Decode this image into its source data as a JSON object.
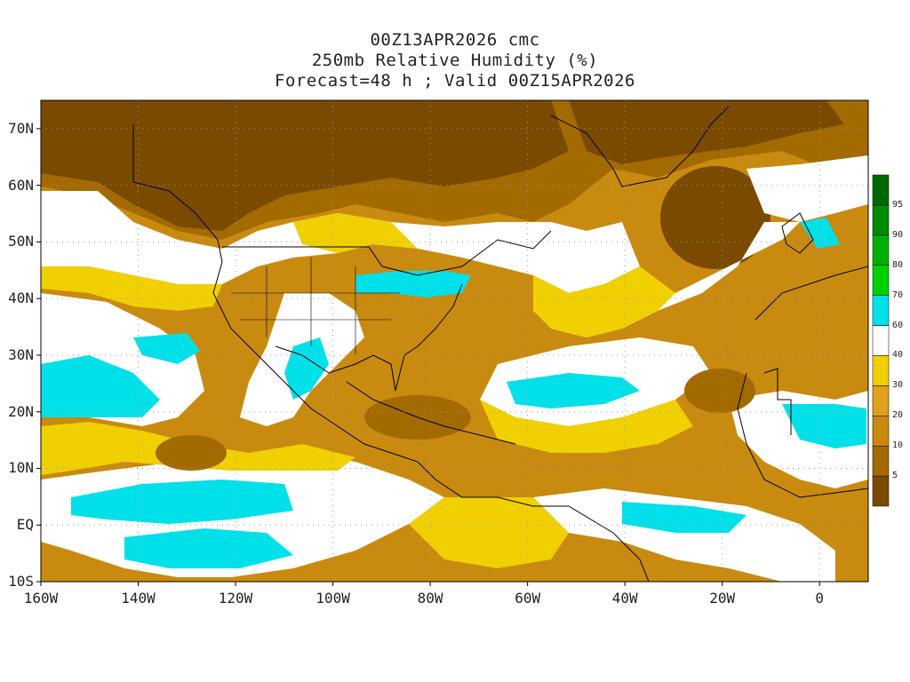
{
  "title": {
    "line1": "00Z13APR2026 cmc",
    "line2": "250mb Relative Humidity (%)",
    "line3": "Forecast=48 h ; Valid 00Z15APR2026"
  },
  "lat_labels": [
    "70N",
    "60N",
    "50N",
    "40N",
    "30N",
    "20N",
    "10N",
    "EQ",
    "10S"
  ],
  "lat_values": [
    70,
    60,
    50,
    40,
    30,
    20,
    10,
    0,
    -10
  ],
  "lon_labels": [
    "160W",
    "140W",
    "120W",
    "100W",
    "80W",
    "60W",
    "40W",
    "20W",
    "0"
  ],
  "lon_values": [
    -160,
    -140,
    -120,
    -100,
    -80,
    -60,
    -40,
    -20,
    0
  ],
  "colorbar": {
    "labels": [
      "5",
      "10",
      "20",
      "30",
      "40",
      "60",
      "70",
      "80",
      "90",
      "95"
    ],
    "colors": [
      "#7a4a00",
      "#a36a00",
      "#c98a10",
      "#e0a020",
      "#f0d000",
      "#ffffff",
      "#00e0e8",
      "#00d000",
      "#00b000",
      "#008a00",
      "#006800"
    ]
  },
  "colors": {
    "very_dry": "#7a4a00",
    "dry": "#a36a00",
    "moderate": "#c98a10",
    "light": "#f0d000",
    "neutral": "#ffffff",
    "moist": "#00e0e8",
    "border": "#000000"
  }
}
